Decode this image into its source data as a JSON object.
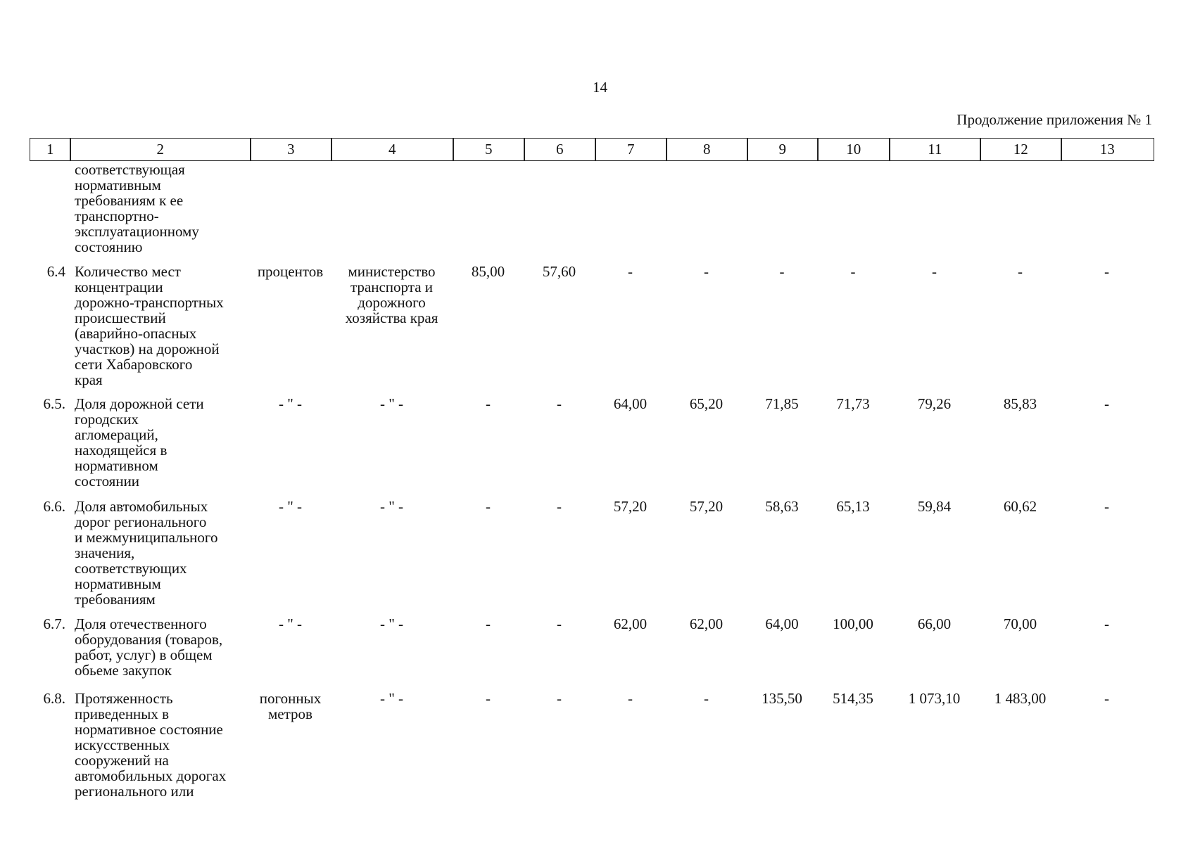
{
  "page_number": "14",
  "continuation_note": "Продолжение приложения № 1",
  "header_columns": [
    "1",
    "2",
    "3",
    "4",
    "5",
    "6",
    "7",
    "8",
    "9",
    "10",
    "11",
    "12",
    "13"
  ],
  "rows": [
    {
      "cells": [
        "",
        "соответствующая\nнормативным\nтребованиям к ее\nтранспортно-\nэксплуатационному\nсостоянию",
        "",
        "",
        "",
        "",
        "",
        "",
        "",
        "",
        "",
        "",
        ""
      ]
    },
    {
      "cells": [
        "6.4",
        "Количество мест\nконцентрации\nдорожно-транспортных\nпроисшествий\n(аварийно-опасных\nучастков) на дорожной\nсети Хабаровского\nкрая",
        "процентов",
        "министерство\nтранспорта и\nдорожного\nхозяйства края",
        "85,00",
        "57,60",
        "-",
        "-",
        "-",
        "-",
        "-",
        "-",
        "-"
      ]
    },
    {
      "cells": [
        "6.5.",
        "Доля дорожной сети\nгородских\nагломераций,\nнаходящейся в\nнормативном\nсостоянии",
        "- \" -",
        "- \" -",
        "-",
        "-",
        "64,00",
        "65,20",
        "71,85",
        "71,73",
        "79,26",
        "85,83",
        "-"
      ]
    },
    {
      "cells": [
        "6.6.",
        "Доля автомобильных\nдорог регионального\nи межмуниципального\nзначения,\nсоответствующих\nнормативным\nтребованиям",
        "- \" -",
        "- \" -",
        "-",
        "-",
        "57,20",
        "57,20",
        "58,63",
        "65,13",
        "59,84",
        "60,62",
        "-"
      ]
    },
    {
      "cells": [
        "6.7.",
        "Доля отечественного\nоборудования (товаров,\nработ, услуг) в общем\nобьеме закупок",
        "- \" -",
        "- \" -",
        "-",
        "-",
        "62,00",
        "62,00",
        "64,00",
        "100,00",
        "66,00",
        "70,00",
        "-"
      ]
    },
    {
      "cells": [
        "6.8.",
        "Протяженность\nприведенных в\nнормативное состояние\nискусственных\nсооружений на\nавтомобильных дорогах\nрегионального или",
        "погонных\nметров",
        "- \" -",
        "-",
        "-",
        "-",
        "-",
        "135,50",
        "514,35",
        "1 073,10",
        "1 483,00",
        "-"
      ]
    }
  ]
}
